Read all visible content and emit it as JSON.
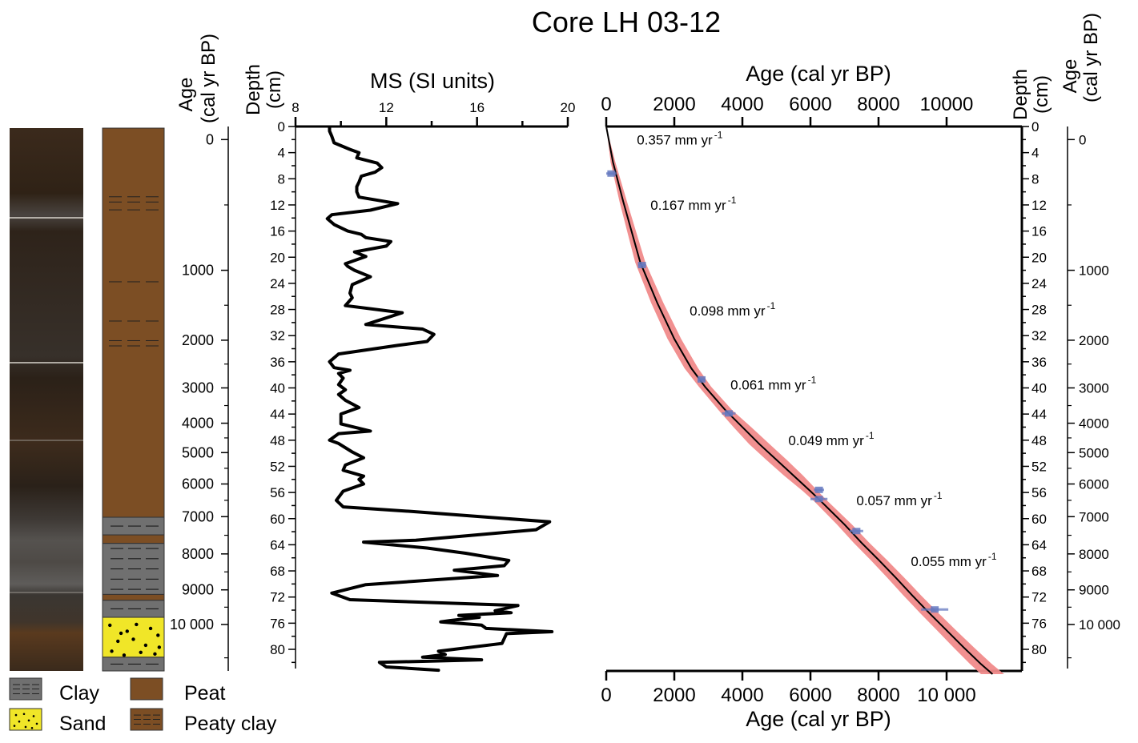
{
  "title": "Core LH 03-12",
  "legend": [
    {
      "key": "clay",
      "label": "Clay",
      "color": "#707070"
    },
    {
      "key": "sand",
      "label": "Sand",
      "color": "#f0e628"
    },
    {
      "key": "peat",
      "label": "Peat",
      "color": "#7c4e24"
    },
    {
      "key": "peaty_clay",
      "label": "Peaty clay",
      "color": "#7c4e24"
    }
  ],
  "colors": {
    "peat": "#7c4e24",
    "clay": "#707070",
    "sand": "#f0e628",
    "envelope": "#f08a8a",
    "dates": "#6478c0",
    "line": "#000000"
  },
  "left_age_axis": {
    "label_line1": "Age",
    "label_line2": "(cal yr BP)",
    "ticks": [
      "0",
      "1000",
      "2000",
      "3000",
      "4000",
      "5000",
      "6000",
      "7000",
      "8000",
      "9000",
      "10 000"
    ]
  },
  "depth_axis_label_line1": "Depth",
  "depth_axis_label_line2": "(cm)",
  "right_age_axis": {
    "label_line1": "Age",
    "label_line2": "(cal yr BP)",
    "ticks": [
      "0",
      "1000",
      "2000",
      "3000",
      "4000",
      "5000",
      "6000",
      "7000",
      "8000",
      "9000",
      "10 000"
    ]
  },
  "chart_data": [
    {
      "type": "table",
      "name": "lithology",
      "depth_unit": "cm",
      "units": [
        {
          "top": 0,
          "bottom": 59.5,
          "lithology": "peat",
          "clay_laminae_depths": [
            10.5,
            11.3,
            12.5,
            23.5,
            29.5,
            32.5,
            33.3
          ]
        },
        {
          "top": 59.5,
          "bottom": 62.2,
          "lithology": "clay"
        },
        {
          "top": 62.2,
          "bottom": 63.5,
          "lithology": "peat"
        },
        {
          "top": 63.5,
          "bottom": 71.3,
          "lithology": "clay"
        },
        {
          "top": 71.3,
          "bottom": 72.2,
          "lithology": "peat"
        },
        {
          "top": 72.2,
          "bottom": 74.8,
          "lithology": "clay"
        },
        {
          "top": 74.8,
          "bottom": 80.9,
          "lithology": "sand"
        },
        {
          "top": 80.9,
          "bottom": 83,
          "lithology": "clay"
        }
      ],
      "age_axis_depths": {
        "ages": [
          0,
          1000,
          2000,
          3000,
          4000,
          5000,
          6000,
          7000,
          8000,
          9000,
          10000
        ],
        "depths": [
          2,
          22,
          32.7,
          40,
          45.4,
          49.9,
          54.7,
          59.7,
          65.4,
          70.9,
          76.2
        ]
      }
    },
    {
      "type": "line",
      "name": "magnetic-susceptibility",
      "title": "MS (SI units)",
      "xlabel": "MS (SI units)",
      "ylabel": "Depth (cm)",
      "xlim": [
        8,
        20
      ],
      "ylim": [
        0,
        83
      ],
      "xticks": [
        "8",
        "12",
        "16",
        "20"
      ],
      "yticks": [
        "0",
        "4",
        "8",
        "12",
        "16",
        "20",
        "24",
        "28",
        "32",
        "36",
        "40",
        "44",
        "48",
        "52",
        "56",
        "60",
        "64",
        "68",
        "72",
        "76",
        "80"
      ],
      "orientation": "depth-down",
      "series": [
        {
          "name": "MS",
          "x": [
            9.5,
            9.5,
            9.6,
            9.7,
            10.4,
            10.8,
            10.7,
            11.6,
            11.8,
            11.5,
            10.9,
            10.8,
            10.7,
            10.7,
            10.8,
            12.5,
            11.3,
            9.6,
            9.4,
            9.7,
            10.3,
            10.9,
            11.1,
            12.2,
            12.0,
            10.6,
            11.1,
            10.2,
            10.3,
            10.6,
            11.3,
            10.5,
            10.4,
            10.5,
            10.2,
            12.7,
            11.1,
            13.6,
            14.1,
            13.8,
            12.5,
            9.9,
            9.5,
            9.7,
            10.4,
            9.9,
            10.1,
            9.9,
            10.2,
            9.9,
            10.2,
            10.8,
            10.0,
            10.0,
            11.3,
            9.9,
            9.5,
            9.9,
            10.5,
            11.0,
            10.2,
            10.1,
            11.0,
            10.8,
            11.0,
            10.1,
            9.8,
            10.1,
            13.1,
            19.2,
            18.6,
            13.3,
            11.0,
            13.8,
            15.5,
            17.4,
            17.2,
            15.0,
            16.9,
            11.1,
            9.6,
            10.4,
            17.8,
            16.8,
            17.5,
            15.2,
            16.1,
            14.8,
            14.4,
            16.2,
            16.4,
            19.3,
            17.3,
            17.1,
            14.3,
            14.6,
            13.6,
            16.2,
            11.7,
            12.0,
            14.3,
            13.4
          ],
          "depth": [
            0,
            0.7,
            1.5,
            2.5,
            3.5,
            4.0,
            4.8,
            5.6,
            6.3,
            7.0,
            7.6,
            8.5,
            9.2,
            10.0,
            10.8,
            11.8,
            12.8,
            13.5,
            14.1,
            15.0,
            16.0,
            16.5,
            17.0,
            17.6,
            18.3,
            19.2,
            19.9,
            21.0,
            21.4,
            22.0,
            23.0,
            24.2,
            25.5,
            26.2,
            27.4,
            28.5,
            30.3,
            31.0,
            31.8,
            32.9,
            33.5,
            34.8,
            36.0,
            36.9,
            37.3,
            37.8,
            38.5,
            39.5,
            40.3,
            41.0,
            41.9,
            43.0,
            44.0,
            45.5,
            46.6,
            47.0,
            48.0,
            48.5,
            49.8,
            50.7,
            51.8,
            52.6,
            53.5,
            54.0,
            54.7,
            55.8,
            57.2,
            58.2,
            58.9,
            60.5,
            61.7,
            63.3,
            63.6,
            64.5,
            65.3,
            66.4,
            67.2,
            67.9,
            68.7,
            70.1,
            71.4,
            72.4,
            73.3,
            74.1,
            74.4,
            74.8,
            75.1,
            75.6,
            75.8,
            76.3,
            76.8,
            77.3,
            77.6,
            79.1,
            80.3,
            80.8,
            81.2,
            81.6,
            82.0,
            82.7,
            83.2,
            83.0
          ]
        }
      ]
    },
    {
      "type": "line",
      "name": "age-depth-model",
      "xlabel": "Age (cal yr BP)",
      "ylabel": "Depth (cm)",
      "xlim": [
        0,
        12300
      ],
      "ylim": [
        0,
        83
      ],
      "xticks_top": [
        "0",
        "2000",
        "4000",
        "6000",
        "8000",
        "10000"
      ],
      "xticks_bottom": [
        "0",
        "2000",
        "4000",
        "6000",
        "8000",
        "10 000"
      ],
      "yticks": [
        "0",
        "4",
        "8",
        "12",
        "16",
        "20",
        "24",
        "28",
        "32",
        "36",
        "40",
        "44",
        "48",
        "52",
        "56",
        "60",
        "64",
        "68",
        "72",
        "76",
        "80"
      ],
      "orientation": "depth-down",
      "model": {
        "age": [
          0,
          200,
          500,
          1000,
          1500,
          2000,
          2500,
          2900,
          3500,
          4000,
          4500,
          5000,
          5500,
          6000,
          6300,
          7000,
          7500,
          8000,
          8500,
          9000,
          9500,
          10000,
          10500,
          11000,
          11350
        ],
        "depth": [
          0,
          5.5,
          11.5,
          20.8,
          27.0,
          32.5,
          37.0,
          39.8,
          43.4,
          46.0,
          48.6,
          51.0,
          53.4,
          55.8,
          57.3,
          60.9,
          63.7,
          66.3,
          69.0,
          71.8,
          74.5,
          77.1,
          79.7,
          82.2,
          83.8
        ],
        "envelope_halfwidth_years": [
          0,
          70,
          110,
          150,
          180,
          200,
          200,
          180,
          200,
          260,
          300,
          300,
          280,
          220,
          200,
          220,
          230,
          240,
          250,
          260,
          270,
          280,
          300,
          320,
          340
        ]
      },
      "dates": [
        {
          "age": 150,
          "depth": 7.2,
          "err": 150
        },
        {
          "age": 1050,
          "depth": 21.2,
          "err": 120
        },
        {
          "age": 2800,
          "depth": 38.7,
          "err": 100
        },
        {
          "age": 3600,
          "depth": 43.9,
          "err": 200
        },
        {
          "age": 6250,
          "depth": 55.6,
          "err": 150
        },
        {
          "age": 6250,
          "depth": 57.0,
          "err": 250
        },
        {
          "age": 7350,
          "depth": 61.9,
          "err": 200
        },
        {
          "age": 9650,
          "depth": 73.9,
          "err": 400
        }
      ],
      "annotations": [
        {
          "text": "0.357 mm yr",
          "sup": "-1",
          "age": 900,
          "depth": 2.0
        },
        {
          "text": "0.167 mm yr",
          "sup": "-1",
          "age": 1300,
          "depth": 12.0
        },
        {
          "text": "0.098 mm yr",
          "sup": "-1",
          "age": 2450,
          "depth": 28.2
        },
        {
          "text": "0.061 mm yr",
          "sup": "-1",
          "age": 3650,
          "depth": 39.5
        },
        {
          "text": "0.049 mm yr",
          "sup": "-1",
          "age": 5350,
          "depth": 48.0
        },
        {
          "text": "0.057 mm yr",
          "sup": "-1",
          "age": 7350,
          "depth": 57.2
        },
        {
          "text": "0.055 mm yr",
          "sup": "-1",
          "age": 8950,
          "depth": 66.5
        }
      ]
    }
  ]
}
